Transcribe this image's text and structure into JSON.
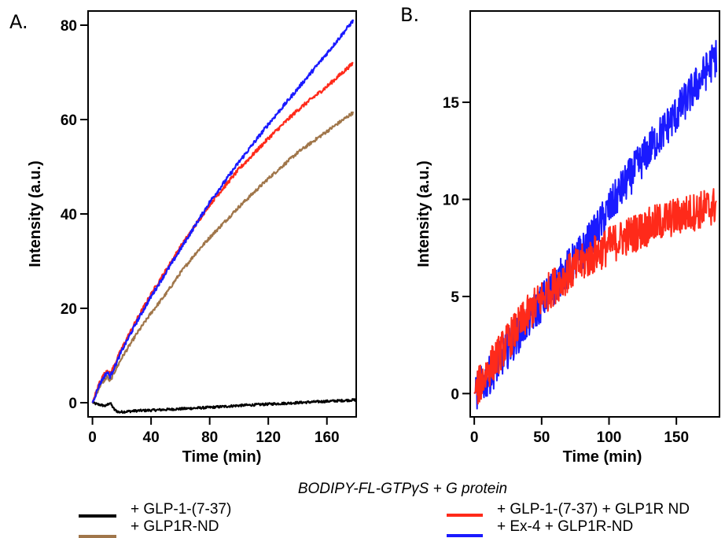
{
  "figure": {
    "legend_title": "BODIPY-FL-GTPγS  + G protein",
    "legend": [
      {
        "label": "+ GLP-1-(7-37)",
        "color": "#000000"
      },
      {
        "label": "+ GLP1R-ND",
        "color": "#A0764A"
      },
      {
        "label": "+ GLP-1-(7-37) + GLP1R ND",
        "color": "#FF2A1A"
      },
      {
        "label": "+ Ex-4 + GLP1R-ND",
        "color": "#1A1AFF"
      }
    ]
  },
  "chart_data": [
    {
      "panel_label": "A.",
      "type": "line",
      "xlabel": "Time (min)",
      "ylabel": "Intensity (a.u.)",
      "xlim": [
        -3,
        180
      ],
      "ylim": [
        -3,
        83
      ],
      "xticks": [
        0,
        40,
        80,
        120,
        160
      ],
      "yticks": [
        0,
        20,
        40,
        60,
        80
      ],
      "series": [
        {
          "name": "+ GLP-1-(7-37)",
          "color": "#000000",
          "noise": 0.25,
          "x": [
            0,
            3,
            6,
            9,
            12,
            15,
            18,
            22,
            30,
            40,
            60,
            80,
            100,
            120,
            140,
            160,
            180
          ],
          "y": [
            0,
            -0.3,
            -0.5,
            -0.7,
            0.0,
            -1.5,
            -2.0,
            -1.9,
            -1.7,
            -1.6,
            -1.3,
            -1.0,
            -0.6,
            -0.3,
            0.0,
            0.3,
            0.6
          ]
        },
        {
          "name": "+ GLP1R-ND",
          "color": "#A0764A",
          "noise": 0.35,
          "x": [
            0,
            5,
            10,
            12,
            15,
            20,
            30,
            40,
            50,
            60,
            70,
            80,
            100,
            120,
            140,
            160,
            178
          ],
          "y": [
            0,
            3.5,
            5.5,
            4.5,
            6.5,
            9.5,
            14.5,
            19.0,
            23.0,
            27.5,
            31.5,
            35.0,
            41.5,
            47.5,
            53.0,
            57.5,
            61.5
          ]
        },
        {
          "name": "+ GLP-1-(7-37) + GLP1R ND",
          "color": "#FF2A1A",
          "noise": 0.4,
          "x": [
            0,
            5,
            10,
            12,
            15,
            20,
            30,
            40,
            50,
            60,
            70,
            80,
            100,
            120,
            140,
            160,
            178
          ],
          "y": [
            0,
            4.5,
            7.0,
            6.0,
            8.0,
            11.5,
            17.5,
            23.0,
            28.0,
            33.0,
            37.5,
            42.0,
            49.5,
            56.0,
            62.0,
            67.0,
            72.0
          ]
        },
        {
          "name": "+ Ex-4 + GLP1R-ND",
          "color": "#1A1AFF",
          "noise": 0.4,
          "x": [
            0,
            5,
            10,
            12,
            15,
            20,
            30,
            40,
            50,
            60,
            70,
            80,
            100,
            120,
            140,
            160,
            178
          ],
          "y": [
            0,
            4.0,
            6.5,
            5.5,
            7.5,
            11.0,
            17.0,
            22.5,
            27.5,
            32.5,
            37.5,
            42.5,
            51.0,
            59.0,
            66.5,
            74.0,
            81.0
          ]
        }
      ]
    },
    {
      "panel_label": "B.",
      "type": "line",
      "xlabel": "Time (min)",
      "ylabel": "Intensity (a.u.)",
      "xlim": [
        -3,
        182
      ],
      "ylim": [
        -1.2,
        19.7
      ],
      "xticks": [
        0,
        50,
        100,
        150
      ],
      "yticks": [
        0,
        5,
        10,
        15
      ],
      "series": [
        {
          "name": "+ Ex-4 + GLP1R-ND",
          "color": "#1A1AFF",
          "noise": 1.0,
          "x": [
            0,
            10,
            20,
            30,
            40,
            50,
            60,
            70,
            80,
            90,
            100,
            110,
            120,
            130,
            140,
            150,
            160,
            170,
            180
          ],
          "y": [
            0,
            0.8,
            1.8,
            2.8,
            3.8,
            4.7,
            5.6,
            6.5,
            7.3,
            8.3,
            9.5,
            10.6,
            11.6,
            12.6,
            13.5,
            14.4,
            15.4,
            16.4,
            17.4
          ]
        },
        {
          "name": "+ GLP-1-(7-37) + GLP1R ND",
          "color": "#FF2A1A",
          "noise": 1.0,
          "x": [
            0,
            10,
            20,
            30,
            40,
            50,
            60,
            70,
            80,
            90,
            100,
            110,
            120,
            130,
            140,
            150,
            160,
            170,
            180
          ],
          "y": [
            0,
            1.2,
            2.2,
            3.2,
            4.1,
            4.9,
            5.6,
            6.2,
            6.7,
            7.2,
            7.6,
            8.0,
            8.3,
            8.6,
            8.9,
            9.1,
            9.3,
            9.5,
            9.7
          ]
        }
      ]
    }
  ]
}
